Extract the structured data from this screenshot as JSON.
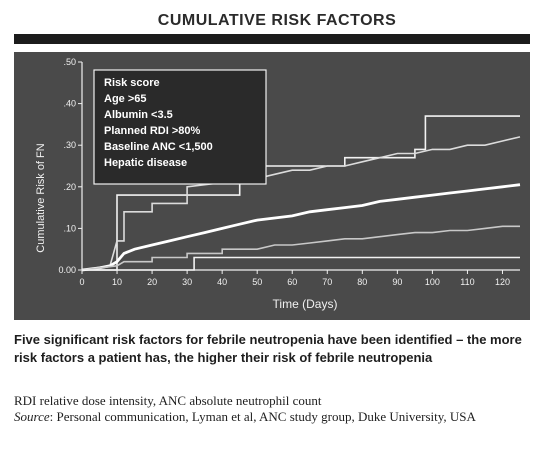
{
  "header": {
    "title": "CUMULATIVE RISK FACTORS"
  },
  "caption": {
    "main": "Five significant risk factors for febrile neutropenia have been identified – the more risk factors a patient has, the higher their risk of febrile neutropenia",
    "abbreviations": "RDI relative dose intensity, ANC absolute neutrophil count",
    "source_label": "Source",
    "source_text": ": Personal communication, Lyman et al, ANC study group, Duke University, USA"
  },
  "chart_data": {
    "type": "line",
    "ylabel": "Cumulative Risk of FN",
    "xlabel": "Time (Days)",
    "xlim": [
      0,
      125
    ],
    "ylim": [
      0,
      0.5
    ],
    "x_ticks": [
      0,
      10,
      20,
      30,
      40,
      50,
      60,
      70,
      80,
      90,
      100,
      110,
      120
    ],
    "x_tick_labels": [
      "0",
      "10",
      "20",
      "30",
      "40",
      "50",
      "60",
      "70",
      "80",
      "90",
      "100",
      "110",
      "120"
    ],
    "y_ticks": [
      0,
      0.1,
      0.2,
      0.3,
      0.4,
      0.5
    ],
    "y_tick_labels": [
      "0.00",
      ".10",
      ".20",
      ".30",
      ".40",
      ".50"
    ],
    "grid": false,
    "legend": {
      "position": "top-left",
      "entries": [
        "Risk score",
        "Age >65",
        "Albumin <3.5",
        "Planned RDI >80%",
        "Baseline ANC <1,500",
        "Hepatic disease"
      ]
    },
    "series": [
      {
        "color": "#f2f2f2",
        "line_width": 1.6,
        "x": [
          0,
          10,
          10,
          45,
          45,
          75,
          75,
          95,
          95,
          98,
          98,
          125
        ],
        "y": [
          0,
          0,
          0.18,
          0.18,
          0.25,
          0.25,
          0.27,
          0.27,
          0.29,
          0.29,
          0.37,
          0.37
        ]
      },
      {
        "color": "#dcdcdc",
        "line_width": 1.6,
        "x": [
          0,
          8,
          10,
          12,
          12,
          20,
          20,
          30,
          30,
          40,
          45,
          50,
          55,
          60,
          65,
          70,
          75,
          80,
          85,
          90,
          95,
          100,
          105,
          110,
          115,
          120,
          125
        ],
        "y": [
          0,
          0.01,
          0.07,
          0.07,
          0.14,
          0.14,
          0.16,
          0.16,
          0.2,
          0.21,
          0.22,
          0.22,
          0.23,
          0.24,
          0.24,
          0.25,
          0.25,
          0.26,
          0.27,
          0.28,
          0.28,
          0.29,
          0.29,
          0.3,
          0.3,
          0.31,
          0.32
        ]
      },
      {
        "color": "#ffffff",
        "line_width": 2.8,
        "x": [
          0,
          5,
          8,
          10,
          12,
          15,
          20,
          25,
          30,
          35,
          40,
          45,
          50,
          55,
          60,
          65,
          70,
          75,
          80,
          85,
          90,
          95,
          100,
          105,
          110,
          115,
          120,
          125
        ],
        "y": [
          0,
          0.005,
          0.01,
          0.02,
          0.04,
          0.05,
          0.06,
          0.07,
          0.08,
          0.09,
          0.1,
          0.11,
          0.12,
          0.125,
          0.13,
          0.14,
          0.145,
          0.15,
          0.155,
          0.165,
          0.17,
          0.175,
          0.18,
          0.185,
          0.19,
          0.195,
          0.2,
          0.205
        ]
      },
      {
        "color": "#c8c8c8",
        "line_width": 1.6,
        "x": [
          0,
          10,
          12,
          20,
          20,
          30,
          30,
          40,
          40,
          50,
          55,
          60,
          65,
          70,
          75,
          80,
          85,
          90,
          95,
          100,
          105,
          110,
          115,
          120,
          125
        ],
        "y": [
          0,
          0.01,
          0.02,
          0.02,
          0.03,
          0.03,
          0.04,
          0.04,
          0.05,
          0.05,
          0.06,
          0.06,
          0.065,
          0.07,
          0.075,
          0.075,
          0.08,
          0.085,
          0.09,
          0.09,
          0.095,
          0.095,
          0.1,
          0.105,
          0.105
        ]
      },
      {
        "color": "#f2f2f2",
        "line_width": 1.6,
        "x": [
          0,
          32,
          32,
          125
        ],
        "y": [
          0,
          0,
          0.03,
          0.03
        ]
      }
    ]
  }
}
